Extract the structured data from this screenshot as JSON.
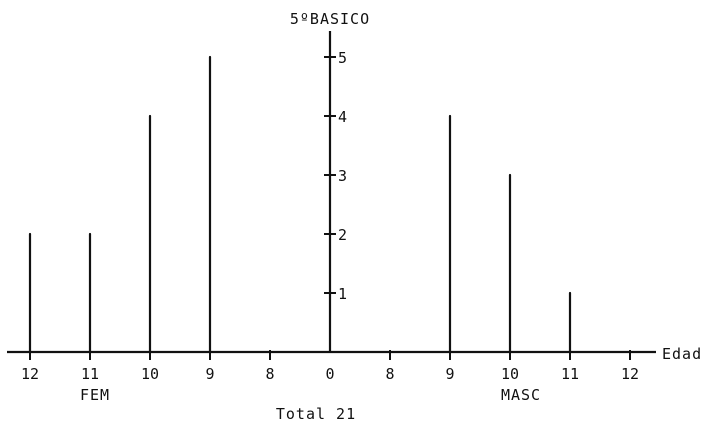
{
  "chart_data": {
    "type": "bar",
    "title": "5ºBASICO",
    "xlabel": "Edad",
    "ylabel": "",
    "ylim": [
      0,
      5
    ],
    "y_ticks": [
      "1",
      "2",
      "3",
      "4",
      "5"
    ],
    "center_label": "0",
    "groups": [
      {
        "name": "FEM",
        "categories": [
          "12",
          "11",
          "10",
          "9",
          "8"
        ],
        "values": [
          2,
          2,
          4,
          5,
          0
        ]
      },
      {
        "name": "MASC",
        "categories": [
          "8",
          "9",
          "10",
          "11",
          "12"
        ],
        "values": [
          0,
          4,
          3,
          1,
          0
        ]
      }
    ],
    "total_label": "Total 21",
    "grid": false
  }
}
